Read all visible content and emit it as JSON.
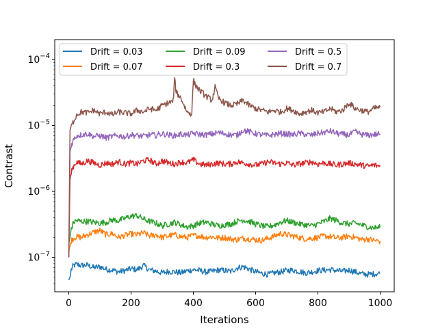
{
  "chart_data": {
    "type": "line",
    "title": "",
    "xlabel": "Iterations",
    "ylabel": "Contrast",
    "xlim": [
      -45,
      1045
    ],
    "ylim": [
      3e-08,
      0.0002
    ],
    "yscale": "log",
    "grid": false,
    "legend_position": "upper-left",
    "legend_columns": 3,
    "x_ticks": [
      0,
      200,
      400,
      600,
      800,
      1000
    ],
    "x_tick_labels": [
      "0",
      "200",
      "400",
      "600",
      "800",
      "1000"
    ],
    "y_ticks": [
      1e-07,
      1e-06,
      1e-05,
      0.0001
    ],
    "y_tick_labels": [
      {
        "base": "10",
        "exp": "−7"
      },
      {
        "base": "10",
        "exp": "−6"
      },
      {
        "base": "10",
        "exp": "−5"
      },
      {
        "base": "10",
        "exp": "−4"
      }
    ],
    "series": [
      {
        "name": "Drift = 0.03",
        "color": "#1f77b4",
        "x": [
          0,
          4,
          8,
          15,
          25,
          40,
          60,
          80,
          100,
          120,
          140,
          160,
          180,
          200,
          220,
          240,
          260,
          280,
          300,
          320,
          340,
          360,
          380,
          400,
          420,
          440,
          460,
          480,
          500,
          520,
          540,
          560,
          580,
          600,
          620,
          640,
          660,
          680,
          700,
          720,
          740,
          760,
          780,
          800,
          820,
          840,
          860,
          880,
          900,
          920,
          940,
          960,
          980,
          1000
        ],
        "values": [
          4.5e-08,
          5e-08,
          6.5e-08,
          7.5e-08,
          7.8e-08,
          7.5e-08,
          7.6e-08,
          7e-08,
          7.2e-08,
          6.6e-08,
          6.4e-08,
          6e-08,
          6.3e-08,
          6.7e-08,
          6.5e-08,
          7.5e-08,
          6.4e-08,
          6.2e-08,
          5.8e-08,
          6.1e-08,
          6e-08,
          5.8e-08,
          6.2e-08,
          6.5e-08,
          6.3e-08,
          6e-08,
          6.1e-08,
          6.4e-08,
          6.3e-08,
          6.1e-08,
          6.9e-08,
          7.2e-08,
          6.6e-08,
          6e-08,
          5.7e-08,
          5.5e-08,
          5.8e-08,
          6e-08,
          6.3e-08,
          6.4e-08,
          6.1e-08,
          5.8e-08,
          6e-08,
          6.3e-08,
          6.4e-08,
          6.5e-08,
          6.3e-08,
          6.1e-08,
          6.4e-08,
          6e-08,
          5.6e-08,
          5.5e-08,
          5.6e-08,
          5.7e-08
        ]
      },
      {
        "name": "Drift = 0.07",
        "color": "#ff7f0e",
        "x": [
          0,
          4,
          8,
          15,
          25,
          40,
          60,
          80,
          100,
          120,
          140,
          160,
          180,
          200,
          220,
          240,
          260,
          280,
          300,
          320,
          340,
          360,
          380,
          400,
          420,
          440,
          460,
          480,
          500,
          520,
          540,
          560,
          580,
          600,
          620,
          640,
          660,
          680,
          700,
          720,
          740,
          760,
          780,
          800,
          820,
          840,
          860,
          880,
          900,
          920,
          940,
          960,
          980,
          1000
        ],
        "values": [
          1.2e-07,
          1.5e-07,
          1.8e-07,
          1.95e-07,
          2.05e-07,
          2e-07,
          2.2e-07,
          2.4e-07,
          2.55e-07,
          2.2e-07,
          2.3e-07,
          2e-07,
          2.15e-07,
          2.25e-07,
          2.2e-07,
          2.35e-07,
          2.1e-07,
          2.2e-07,
          2e-07,
          2.1e-07,
          2.2e-07,
          2.05e-07,
          2e-07,
          2.15e-07,
          2.1e-07,
          2e-07,
          2.05e-07,
          1.95e-07,
          2e-07,
          1.9e-07,
          1.85e-07,
          1.95e-07,
          1.9e-07,
          1.85e-07,
          1.8e-07,
          1.95e-07,
          2.1e-07,
          2.3e-07,
          2.2e-07,
          2.1e-07,
          2e-07,
          1.9e-07,
          1.95e-07,
          2e-07,
          2.1e-07,
          2.05e-07,
          1.95e-07,
          2e-07,
          2.1e-07,
          2e-07,
          1.85e-07,
          1.9e-07,
          1.8e-07,
          1.75e-07
        ]
      },
      {
        "name": "Drift = 0.09",
        "color": "#2ca02c",
        "x": [
          0,
          4,
          8,
          15,
          25,
          40,
          60,
          80,
          100,
          120,
          140,
          160,
          180,
          200,
          220,
          240,
          260,
          280,
          300,
          320,
          340,
          360,
          380,
          400,
          420,
          440,
          460,
          480,
          500,
          520,
          540,
          560,
          580,
          600,
          620,
          640,
          660,
          680,
          700,
          720,
          740,
          760,
          780,
          800,
          820,
          840,
          860,
          880,
          900,
          920,
          940,
          960,
          980,
          1000
        ],
        "values": [
          1.6e-07,
          2e-07,
          2.6e-07,
          3.4e-07,
          3.6e-07,
          3.5e-07,
          3.5e-07,
          3.4e-07,
          3.3e-07,
          3.4e-07,
          3.7e-07,
          3.6e-07,
          3.9e-07,
          4.2e-07,
          4.3e-07,
          3.8e-07,
          3.5e-07,
          3.3e-07,
          3e-07,
          3.2e-07,
          3.4e-07,
          3.1e-07,
          2.9e-07,
          3e-07,
          3.3e-07,
          3.4e-07,
          3.2e-07,
          3e-07,
          3.1e-07,
          3.2e-07,
          3.5e-07,
          3.7e-07,
          3.5e-07,
          3.2e-07,
          3e-07,
          2.9e-07,
          3.1e-07,
          3.4e-07,
          3.6e-07,
          3.4e-07,
          3.2e-07,
          3.1e-07,
          3e-07,
          3.2e-07,
          3.5e-07,
          3.9e-07,
          3.6e-07,
          3.3e-07,
          3.2e-07,
          3.3e-07,
          3.1e-07,
          2.9e-07,
          2.8e-07,
          2.85e-07
        ]
      },
      {
        "name": "Drift = 0.3",
        "color": "#d62728",
        "x": [
          0,
          4,
          8,
          15,
          25,
          40,
          60,
          80,
          100,
          120,
          140,
          160,
          180,
          200,
          220,
          240,
          260,
          280,
          300,
          320,
          340,
          360,
          380,
          400,
          420,
          440,
          460,
          480,
          500,
          520,
          540,
          560,
          580,
          600,
          620,
          640,
          660,
          680,
          700,
          720,
          740,
          760,
          780,
          800,
          820,
          840,
          860,
          880,
          900,
          920,
          940,
          960,
          980,
          1000
        ],
        "values": [
          1e-07,
          1.5e-06,
          2e-06,
          2.4e-06,
          2.8e-06,
          2.6e-06,
          2.9e-06,
          2.7e-06,
          2.5e-06,
          2.7e-06,
          2.6e-06,
          2.8e-06,
          2.6e-06,
          2.7e-06,
          2.6e-06,
          2.9e-06,
          3e-06,
          2.6e-06,
          2.9e-06,
          2.7e-06,
          2.6e-06,
          2.8e-06,
          2.7e-06,
          3e-06,
          2.6e-06,
          2.5e-06,
          2.6e-06,
          2.7e-06,
          2.6e-06,
          2.6e-06,
          2.8e-06,
          2.7e-06,
          2.6e-06,
          2.5e-06,
          2.6e-06,
          2.8e-06,
          2.7e-06,
          2.6e-06,
          2.7e-06,
          2.5e-06,
          2.6e-06,
          2.7e-06,
          2.8e-06,
          2.6e-06,
          2.7e-06,
          2.6e-06,
          2.5e-06,
          2.6e-06,
          2.7e-06,
          2.6e-06,
          2.5e-06,
          2.4e-06,
          2.5e-06,
          2.4e-06
        ]
      },
      {
        "name": "Drift = 0.5",
        "color": "#9467bd",
        "x": [
          0,
          4,
          8,
          15,
          25,
          40,
          60,
          80,
          100,
          120,
          140,
          160,
          180,
          200,
          220,
          240,
          260,
          280,
          300,
          320,
          340,
          360,
          380,
          400,
          420,
          440,
          460,
          480,
          500,
          520,
          540,
          560,
          580,
          600,
          620,
          640,
          660,
          680,
          700,
          720,
          740,
          760,
          780,
          800,
          820,
          840,
          860,
          880,
          900,
          920,
          940,
          960,
          980,
          1000
        ],
        "values": [
          1e-07,
          4e-06,
          5e-06,
          6e-06,
          7e-06,
          7.2e-06,
          7.5e-06,
          6.8e-06,
          7e-06,
          6.5e-06,
          6.8e-06,
          7e-06,
          6.7e-06,
          7.2e-06,
          7e-06,
          6.8e-06,
          7.2e-06,
          7.1e-06,
          7.5e-06,
          7.2e-06,
          7e-06,
          7.4e-06,
          7.1e-06,
          7.6e-06,
          7.3e-06,
          7.2e-06,
          7.4e-06,
          7.8e-06,
          7.5e-06,
          7.2e-06,
          7.1e-06,
          8.5e-06,
          8e-06,
          7.5e-06,
          7.2e-06,
          7e-06,
          7.3e-06,
          7.6e-06,
          7.4e-06,
          7.2e-06,
          7.6e-06,
          7.3e-06,
          7.1e-06,
          7.6e-06,
          7.8e-06,
          8.2e-06,
          7.6e-06,
          7.3e-06,
          7.2e-06,
          8e-06,
          7.3e-06,
          7.1e-06,
          7.3e-06,
          7.4e-06
        ]
      },
      {
        "name": "Drift = 0.7",
        "color": "#8c564b",
        "x": [
          0,
          4,
          8,
          15,
          25,
          40,
          60,
          80,
          100,
          120,
          140,
          160,
          180,
          200,
          220,
          240,
          260,
          280,
          300,
          320,
          335,
          340,
          345,
          360,
          380,
          395,
          400,
          405,
          420,
          440,
          460,
          470,
          480,
          500,
          520,
          540,
          560,
          580,
          600,
          620,
          640,
          660,
          680,
          700,
          720,
          740,
          760,
          780,
          800,
          820,
          840,
          860,
          880,
          900,
          920,
          940,
          960,
          980,
          1000
        ],
        "values": [
          1e-07,
          8.5e-06,
          9.5e-06,
          1.15e-05,
          1.45e-05,
          1.6e-05,
          1.55e-05,
          1.7e-05,
          1.5e-05,
          1.6e-05,
          1.45e-05,
          1.6e-05,
          1.55e-05,
          1.5e-05,
          1.7e-05,
          1.6e-05,
          1.8e-05,
          1.7e-05,
          2e-05,
          2.2e-05,
          2.3e-05,
          5e-05,
          3.2e-05,
          2.6e-05,
          1.6e-05,
          1.5e-05,
          5e-05,
          4.2e-05,
          3.4e-05,
          2.8e-05,
          2.4e-05,
          3.8e-05,
          2.6e-05,
          2.2e-05,
          2e-05,
          2.1e-05,
          2.4e-05,
          2e-05,
          1.8e-05,
          1.7e-05,
          1.6e-05,
          1.7e-05,
          1.6e-05,
          1.8e-05,
          1.7e-05,
          1.5e-05,
          1.6e-05,
          1.7e-05,
          1.55e-05,
          1.6e-05,
          1.8e-05,
          1.6e-05,
          1.7e-05,
          2.2e-05,
          1.8e-05,
          1.7e-05,
          1.6e-05,
          1.8e-05,
          1.9e-05
        ]
      }
    ]
  }
}
